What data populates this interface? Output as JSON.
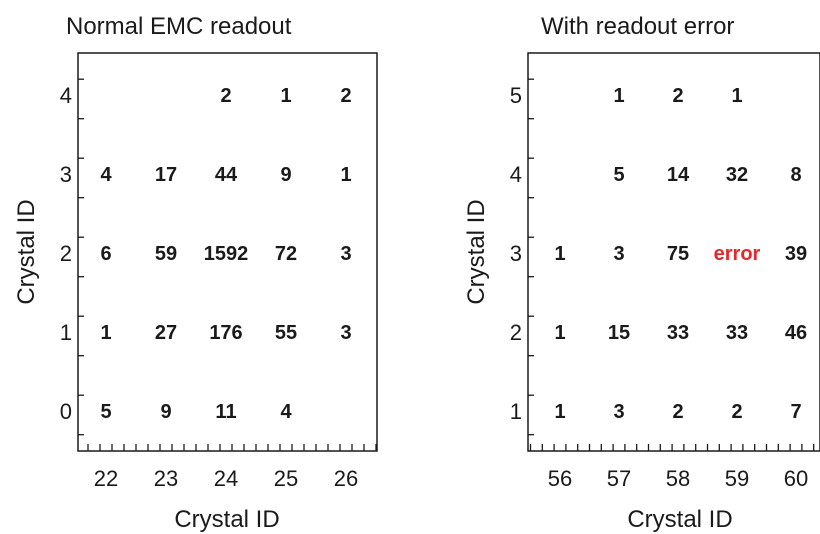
{
  "chart_data": [
    {
      "type": "table",
      "title": "Normal EMC readout",
      "xlabel": "Crystal ID",
      "ylabel": "Crystal ID",
      "x_ticks": [
        "22",
        "23",
        "24",
        "25",
        "26"
      ],
      "y_ticks": [
        "0",
        "1",
        "2",
        "3",
        "4"
      ],
      "xlim": [
        21.5,
        26.5
      ],
      "ylim": [
        -0.3,
        4.5
      ],
      "cells": [
        {
          "x": 24,
          "y": 4,
          "value": "2"
        },
        {
          "x": 25,
          "y": 4,
          "value": "1"
        },
        {
          "x": 26,
          "y": 4,
          "value": "2"
        },
        {
          "x": 22,
          "y": 3,
          "value": "4"
        },
        {
          "x": 23,
          "y": 3,
          "value": "17"
        },
        {
          "x": 24,
          "y": 3,
          "value": "44"
        },
        {
          "x": 25,
          "y": 3,
          "value": "9"
        },
        {
          "x": 26,
          "y": 3,
          "value": "1"
        },
        {
          "x": 22,
          "y": 2,
          "value": "6"
        },
        {
          "x": 23,
          "y": 2,
          "value": "59"
        },
        {
          "x": 24,
          "y": 2,
          "value": "1592"
        },
        {
          "x": 25,
          "y": 2,
          "value": "72"
        },
        {
          "x": 26,
          "y": 2,
          "value": "3"
        },
        {
          "x": 22,
          "y": 1,
          "value": "1"
        },
        {
          "x": 23,
          "y": 1,
          "value": "27"
        },
        {
          "x": 24,
          "y": 1,
          "value": "176"
        },
        {
          "x": 25,
          "y": 1,
          "value": "55"
        },
        {
          "x": 26,
          "y": 1,
          "value": "3"
        },
        {
          "x": 22,
          "y": 0,
          "value": "5"
        },
        {
          "x": 23,
          "y": 0,
          "value": "9"
        },
        {
          "x": 24,
          "y": 0,
          "value": "11"
        },
        {
          "x": 25,
          "y": 0,
          "value": "4"
        }
      ]
    },
    {
      "type": "table",
      "title": "With readout error",
      "xlabel": "Crystal ID",
      "ylabel": "Crystal ID",
      "x_ticks": [
        "56",
        "57",
        "58",
        "59",
        "60"
      ],
      "y_ticks": [
        "1",
        "2",
        "3",
        "4",
        "5"
      ],
      "xlim": [
        55.5,
        60.5
      ],
      "ylim": [
        0.7,
        5.5
      ],
      "cells": [
        {
          "x": 57,
          "y": 5,
          "value": "1"
        },
        {
          "x": 58,
          "y": 5,
          "value": "2"
        },
        {
          "x": 59,
          "y": 5,
          "value": "1"
        },
        {
          "x": 57,
          "y": 4,
          "value": "5"
        },
        {
          "x": 58,
          "y": 4,
          "value": "14"
        },
        {
          "x": 59,
          "y": 4,
          "value": "32"
        },
        {
          "x": 60,
          "y": 4,
          "value": "8"
        },
        {
          "x": 56,
          "y": 3,
          "value": "1"
        },
        {
          "x": 57,
          "y": 3,
          "value": "3"
        },
        {
          "x": 58,
          "y": 3,
          "value": "75"
        },
        {
          "x": 59,
          "y": 3,
          "value": "error",
          "color": "#e8262b"
        },
        {
          "x": 60,
          "y": 3,
          "value": "39"
        },
        {
          "x": 56,
          "y": 2,
          "value": "1"
        },
        {
          "x": 57,
          "y": 2,
          "value": "15"
        },
        {
          "x": 58,
          "y": 2,
          "value": "33"
        },
        {
          "x": 59,
          "y": 2,
          "value": "33"
        },
        {
          "x": 60,
          "y": 2,
          "value": "46"
        },
        {
          "x": 56,
          "y": 1,
          "value": "1"
        },
        {
          "x": 57,
          "y": 1,
          "value": "3"
        },
        {
          "x": 58,
          "y": 1,
          "value": "2"
        },
        {
          "x": 59,
          "y": 1,
          "value": "2"
        },
        {
          "x": 60,
          "y": 1,
          "value": "7"
        }
      ]
    }
  ],
  "colors": {
    "text": "#1a1a1a",
    "error": "#e8262b",
    "axis": "#1a1a1a"
  }
}
